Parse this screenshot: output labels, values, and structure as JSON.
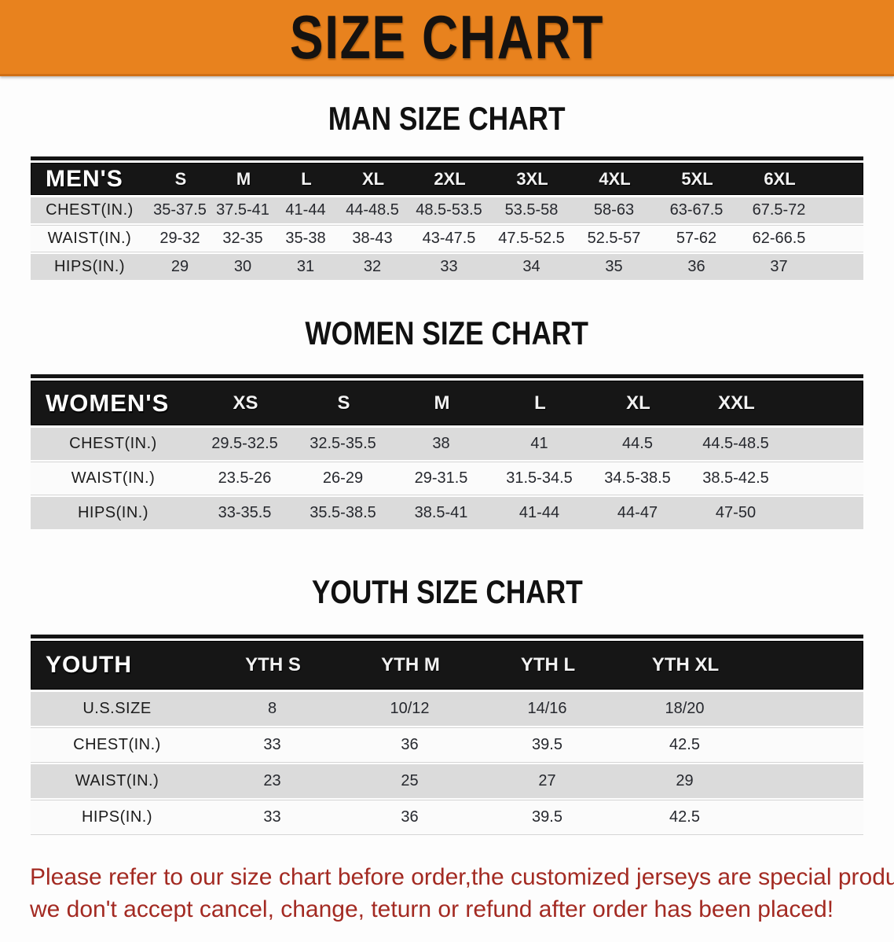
{
  "banner": {
    "title": "SIZE CHART",
    "bg_color": "#e8821e",
    "text_color": "#151210"
  },
  "sections": [
    {
      "heading": "MAN SIZE CHART",
      "label": "MEN'S",
      "columns": [
        "S",
        "M",
        "L",
        "XL",
        "2XL",
        "3XL",
        "4XL",
        "5XL",
        "6XL"
      ],
      "rows": [
        {
          "label": "CHEST(IN.)",
          "values": [
            "35-37.5",
            "37.5-41",
            "41-44",
            "44-48.5",
            "48.5-53.5",
            "53.5-58",
            "58-63",
            "63-67.5",
            "67.5-72"
          ]
        },
        {
          "label": "WAIST(IN.)",
          "values": [
            "29-32",
            "32-35",
            "35-38",
            "38-43",
            "43-47.5",
            "47.5-52.5",
            "52.5-57",
            "57-62",
            "62-66.5"
          ]
        },
        {
          "label": "HIPS(IN.)",
          "values": [
            "29",
            "30",
            "31",
            "32",
            "33",
            "34",
            "35",
            "36",
            "37"
          ]
        }
      ]
    },
    {
      "heading": "WOMEN SIZE CHART",
      "label": "WOMEN'S",
      "columns": [
        "XS",
        "S",
        "M",
        "L",
        "XL",
        "XXL"
      ],
      "rows": [
        {
          "label": "CHEST(IN.)",
          "values": [
            "29.5-32.5",
            "32.5-35.5",
            "38",
            "41",
            "44.5",
            "44.5-48.5"
          ]
        },
        {
          "label": "WAIST(IN.)",
          "values": [
            "23.5-26",
            "26-29",
            "29-31.5",
            "31.5-34.5",
            "34.5-38.5",
            "38.5-42.5"
          ]
        },
        {
          "label": "HIPS(IN.)",
          "values": [
            "33-35.5",
            "35.5-38.5",
            "38.5-41",
            "41-44",
            "44-47",
            "47-50"
          ]
        }
      ]
    },
    {
      "heading": "YOUTH SIZE CHART",
      "label": "YOUTH",
      "columns": [
        "YTH S",
        "YTH M",
        "YTH L",
        "YTH XL"
      ],
      "rows": [
        {
          "label": "U.S.SIZE",
          "values": [
            "8",
            "10/12",
            "14/16",
            "18/20"
          ]
        },
        {
          "label": "CHEST(IN.)",
          "values": [
            "33",
            "36",
            "39.5",
            "42.5"
          ]
        },
        {
          "label": "WAIST(IN.)",
          "values": [
            "23",
            "25",
            "27",
            "29"
          ]
        },
        {
          "label": "HIPS(IN.)",
          "values": [
            "33",
            "36",
            "39.5",
            "42.5"
          ]
        }
      ]
    }
  ],
  "disclaimer": {
    "line1": "Please refer to our size chart before order,the customized jerseys are special products,",
    "line2": "we don't accept cancel, change, teturn or refund after order has been placed!",
    "text_color": "#a32a22"
  }
}
